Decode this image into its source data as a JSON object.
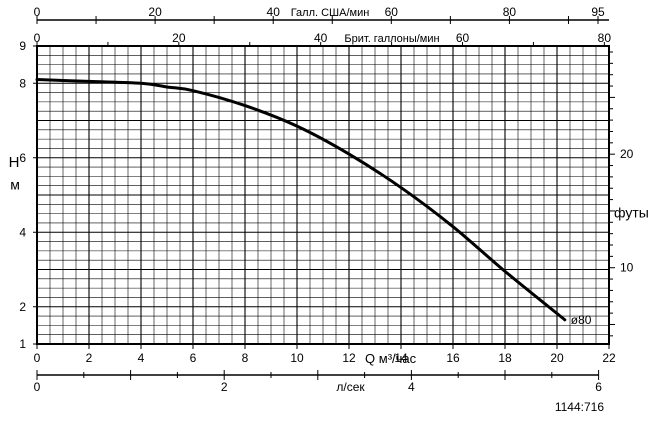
{
  "chart_data": {
    "type": "line",
    "title": "",
    "xlabel": "Q м³/час",
    "ylabel_left": {
      "line1": "Н",
      "line2": "м"
    },
    "ylabel_right": "футы",
    "xlim": [
      0,
      22
    ],
    "ylim": [
      1,
      9
    ],
    "x_ticks": [
      "0",
      "2",
      "4",
      "6",
      "8",
      "10",
      "12",
      "14",
      "16",
      "18",
      "20",
      "22"
    ],
    "y_ticks_left": [
      "1",
      "2",
      "4",
      "6",
      "8",
      "9"
    ],
    "y_ticks_right": [
      "10",
      "20"
    ],
    "top_axis_us": {
      "label": "Галл. США/мин",
      "ticks": [
        "0",
        "20",
        "40",
        "60",
        "80",
        "95"
      ]
    },
    "top_axis_uk": {
      "label": "Брит. галлоны/мин",
      "ticks": [
        "0",
        "20",
        "40",
        "60",
        "80"
      ]
    },
    "bottom_axis_lsec": {
      "label": "л/сек",
      "ticks": [
        "0",
        "2",
        "4",
        "6"
      ]
    },
    "series": [
      {
        "name": "ø80",
        "x": [
          0,
          2,
          4,
          5,
          6,
          8,
          10,
          12,
          14,
          16,
          18,
          20.3
        ],
        "y": [
          8.1,
          8.05,
          8.0,
          7.9,
          7.8,
          7.4,
          6.85,
          6.1,
          5.2,
          4.15,
          2.95,
          1.65
        ]
      }
    ],
    "grid": true,
    "figure_code": "1144:716"
  }
}
